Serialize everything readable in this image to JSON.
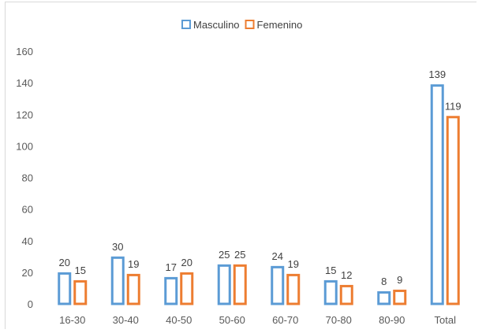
{
  "chart_data": {
    "type": "bar",
    "title": "",
    "xlabel": "",
    "ylabel": "",
    "categories": [
      "16-30",
      "30-40",
      "40-50",
      "50-60",
      "60-70",
      "70-80",
      "80-90",
      "Total"
    ],
    "series": [
      {
        "name": "Masculino",
        "values": [
          20,
          30,
          17,
          25,
          24,
          15,
          8,
          139
        ],
        "color": "#5b9bd5"
      },
      {
        "name": "Femenino",
        "values": [
          15,
          19,
          20,
          25,
          19,
          12,
          9,
          119
        ],
        "color": "#ed7d31"
      }
    ],
    "ylim": [
      0,
      160
    ],
    "yticks": [
      0,
      20,
      40,
      60,
      80,
      100,
      120,
      140,
      160
    ],
    "grid": false,
    "legend": "top-center",
    "bar_style": "outline"
  }
}
